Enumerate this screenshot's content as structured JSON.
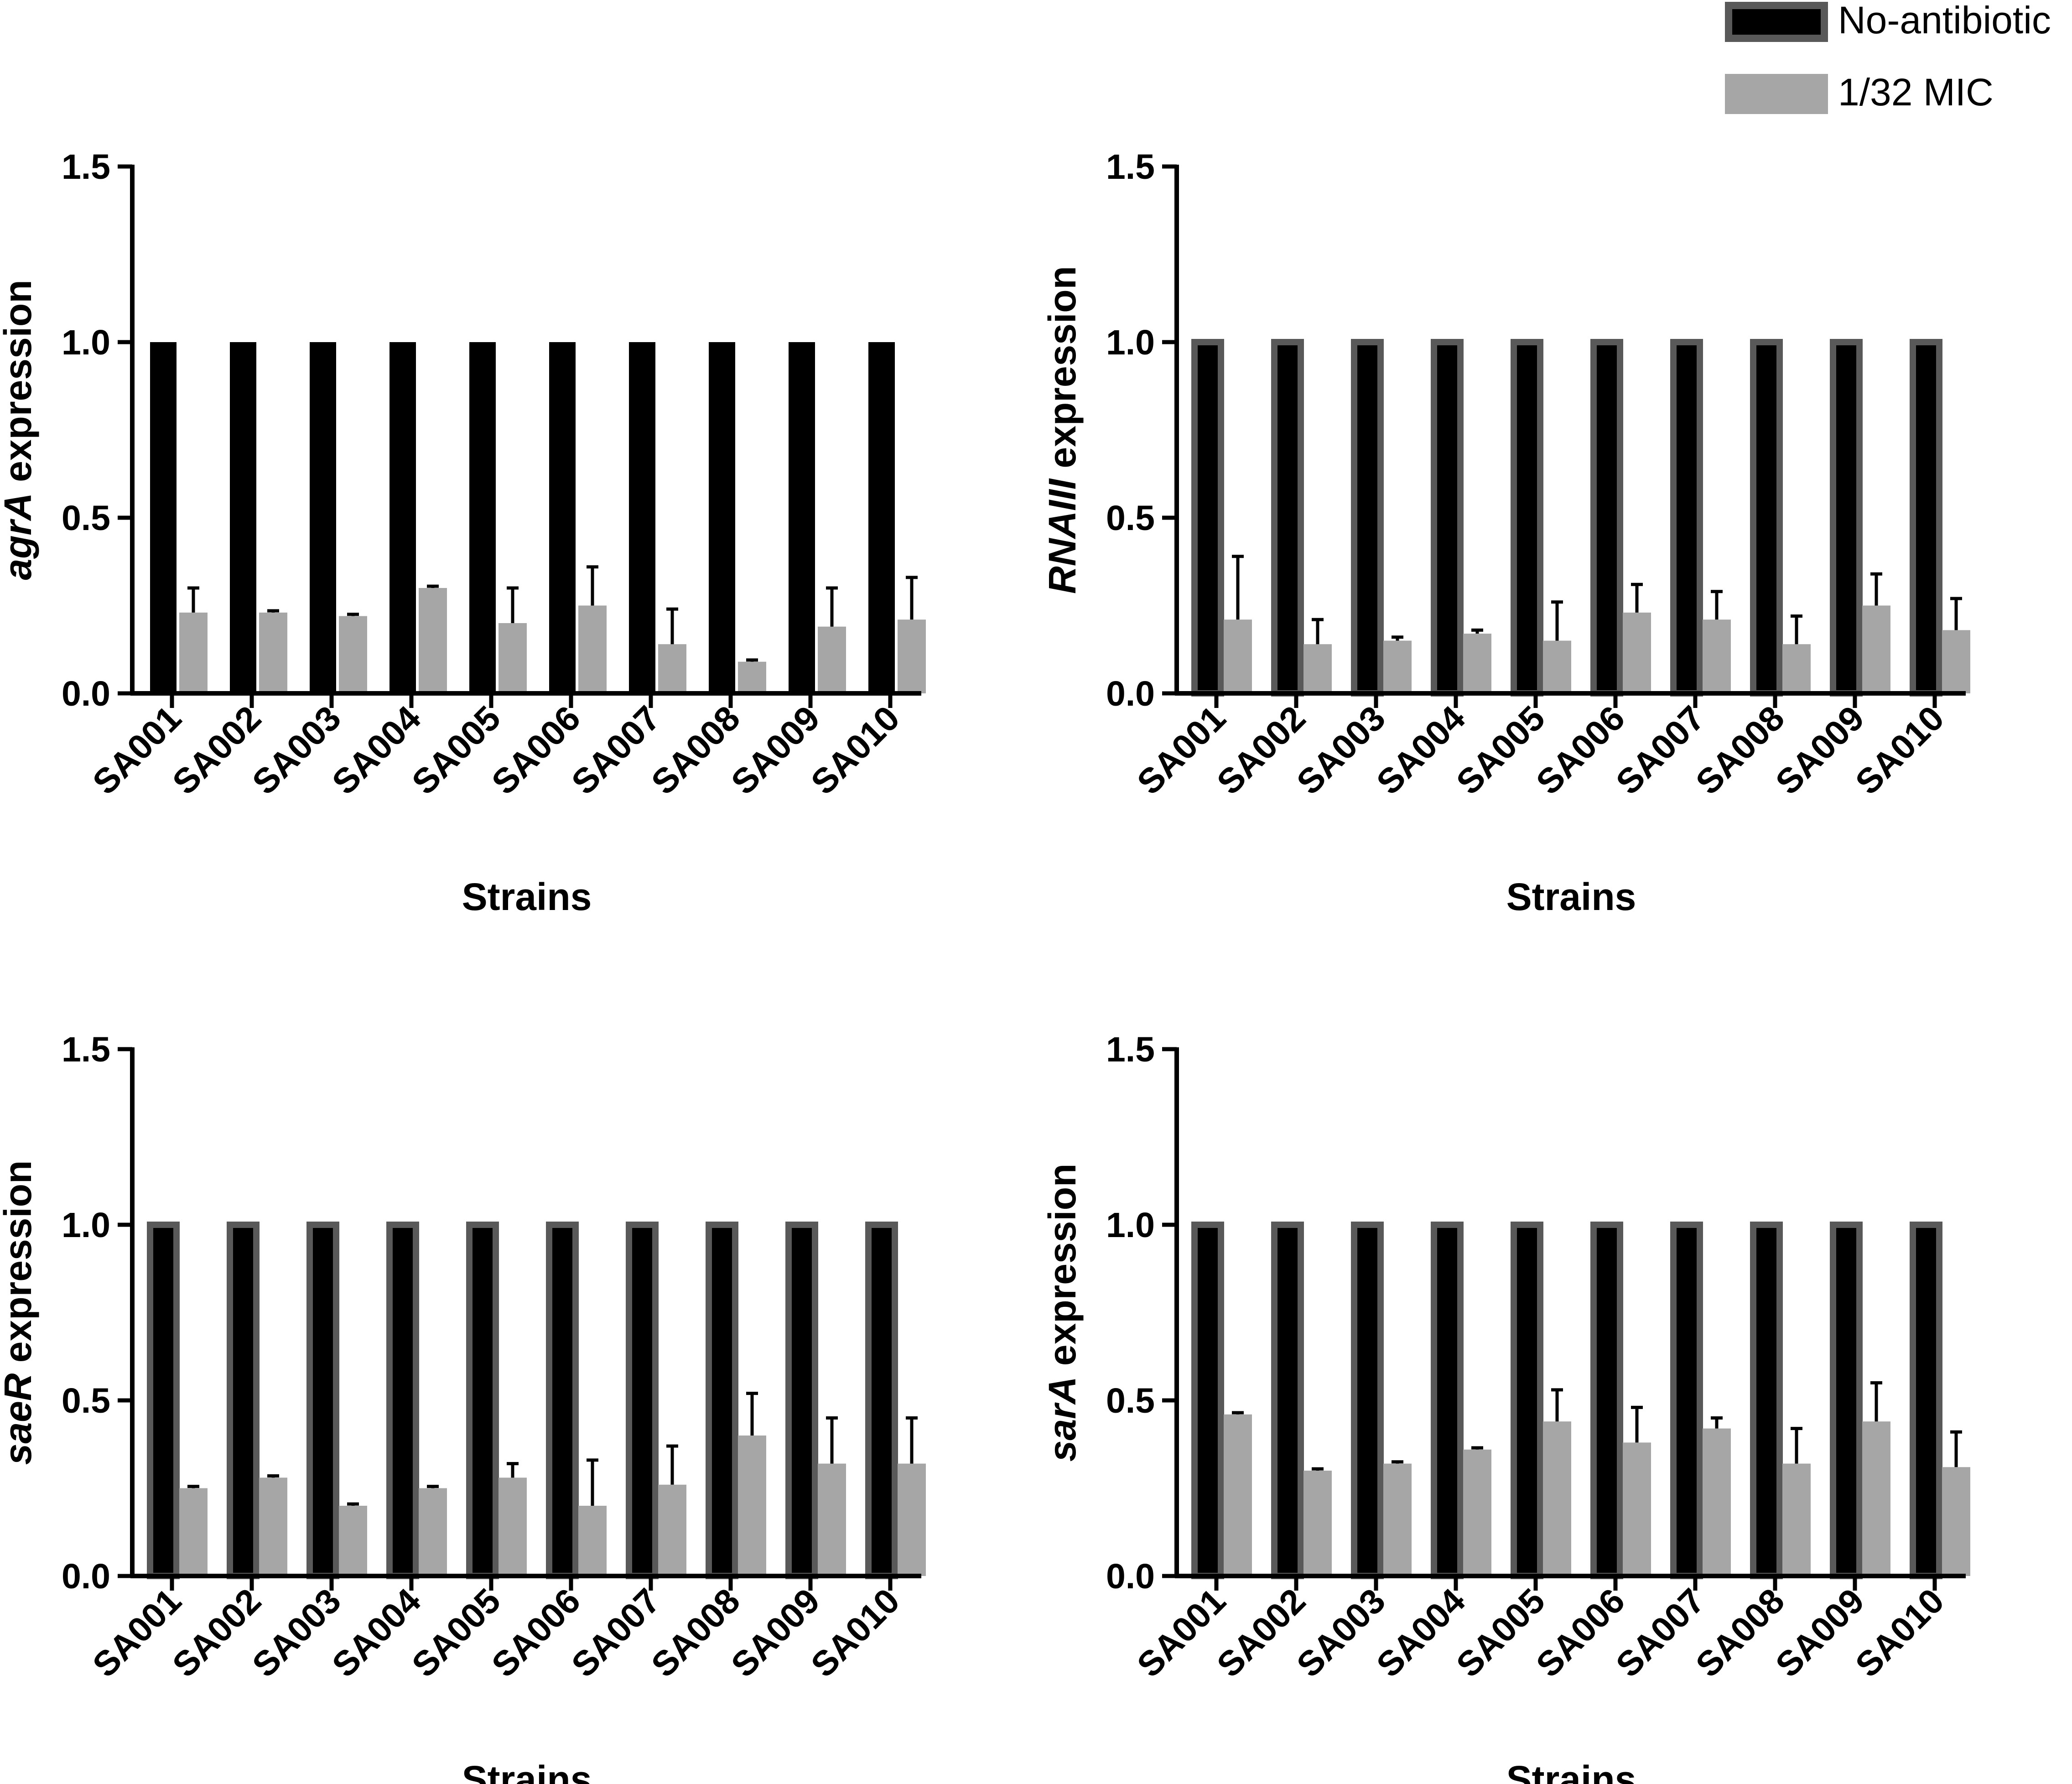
{
  "legend": {
    "items": [
      {
        "label": "No-antibiotic",
        "color": "#000000",
        "border": "#595959"
      },
      {
        "label": "1/32 MIC",
        "color": "#a6a6a6",
        "border": "#a6a6a6"
      }
    ]
  },
  "chart_data": [
    {
      "type": "bar",
      "gene": "agrA",
      "ylabel_gene": "agrA",
      "ylabel_rest": " expression",
      "xlabel": "Strains",
      "ylim": [
        0,
        1.5
      ],
      "yticks": [
        "0.0",
        "0.5",
        "1.0",
        "1.5"
      ],
      "categories": [
        "SA001",
        "SA002",
        "SA003",
        "SA004",
        "SA005",
        "SA006",
        "SA007",
        "SA008",
        "SA009",
        "SA010"
      ],
      "series": [
        {
          "name": "No-antibiotic",
          "values": [
            1,
            1,
            1,
            1,
            1,
            1,
            1,
            1,
            1,
            1
          ],
          "errors": [
            0,
            0,
            0,
            0,
            0,
            0,
            0,
            0,
            0,
            0
          ]
        },
        {
          "name": "1/32 MIC",
          "values": [
            0.23,
            0.23,
            0.22,
            0.3,
            0.2,
            0.25,
            0.14,
            0.09,
            0.19,
            0.21
          ],
          "errors": [
            0.07,
            0.005,
            0.005,
            0.005,
            0.1,
            0.11,
            0.1,
            0.005,
            0.11,
            0.12
          ]
        }
      ]
    },
    {
      "type": "bar",
      "gene": "RNAIII",
      "ylabel_gene": "RNAIII",
      "ylabel_rest": " expression",
      "xlabel": "Strains",
      "ylim": [
        0,
        1.5
      ],
      "yticks": [
        "0.0",
        "0.5",
        "1.0",
        "1.5"
      ],
      "categories": [
        "SA001",
        "SA002",
        "SA003",
        "SA004",
        "SA005",
        "SA006",
        "SA007",
        "SA008",
        "SA009",
        "SA010"
      ],
      "series": [
        {
          "name": "No-antibiotic",
          "values": [
            1,
            1,
            1,
            1,
            1,
            1,
            1,
            1,
            1,
            1
          ],
          "errors": [
            0,
            0,
            0,
            0,
            0,
            0,
            0,
            0,
            0,
            0
          ]
        },
        {
          "name": "1/32 MIC",
          "values": [
            0.21,
            0.14,
            0.15,
            0.17,
            0.15,
            0.23,
            0.21,
            0.14,
            0.25,
            0.18
          ],
          "errors": [
            0.18,
            0.07,
            0.01,
            0.01,
            0.11,
            0.08,
            0.08,
            0.08,
            0.09,
            0.09
          ]
        }
      ]
    },
    {
      "type": "bar",
      "gene": "saeR",
      "ylabel_gene": "saeR",
      "ylabel_rest": " expression",
      "xlabel": "Strains",
      "ylim": [
        0,
        1.5
      ],
      "yticks": [
        "0.0",
        "0.5",
        "1.0",
        "1.5"
      ],
      "categories": [
        "SA001",
        "SA002",
        "SA003",
        "SA004",
        "SA005",
        "SA006",
        "SA007",
        "SA008",
        "SA009",
        "SA010"
      ],
      "series": [
        {
          "name": "No-antibiotic",
          "values": [
            1,
            1,
            1,
            1,
            1,
            1,
            1,
            1,
            1,
            1
          ],
          "errors": [
            0,
            0,
            0,
            0,
            0,
            0,
            0,
            0,
            0,
            0
          ]
        },
        {
          "name": "1/32 MIC",
          "values": [
            0.25,
            0.28,
            0.2,
            0.25,
            0.28,
            0.2,
            0.26,
            0.4,
            0.32,
            0.32
          ],
          "errors": [
            0.005,
            0.005,
            0.005,
            0.005,
            0.04,
            0.13,
            0.11,
            0.12,
            0.13,
            0.13
          ]
        }
      ]
    },
    {
      "type": "bar",
      "gene": "sarA",
      "ylabel_gene": "sarA",
      "ylabel_rest": " expression",
      "xlabel": "Strains",
      "ylim": [
        0,
        1.5
      ],
      "yticks": [
        "0.0",
        "0.5",
        "1.0",
        "1.5"
      ],
      "categories": [
        "SA001",
        "SA002",
        "SA003",
        "SA004",
        "SA005",
        "SA006",
        "SA007",
        "SA008",
        "SA009",
        "SA010"
      ],
      "series": [
        {
          "name": "No-antibiotic",
          "values": [
            1,
            1,
            1,
            1,
            1,
            1,
            1,
            1,
            1,
            1
          ],
          "errors": [
            0,
            0,
            0,
            0,
            0,
            0,
            0,
            0,
            0,
            0
          ]
        },
        {
          "name": "1/32 MIC",
          "values": [
            0.46,
            0.3,
            0.32,
            0.36,
            0.44,
            0.38,
            0.42,
            0.32,
            0.44,
            0.31
          ],
          "errors": [
            0.005,
            0.005,
            0.005,
            0.005,
            0.09,
            0.1,
            0.03,
            0.1,
            0.11,
            0.1
          ]
        }
      ]
    }
  ]
}
